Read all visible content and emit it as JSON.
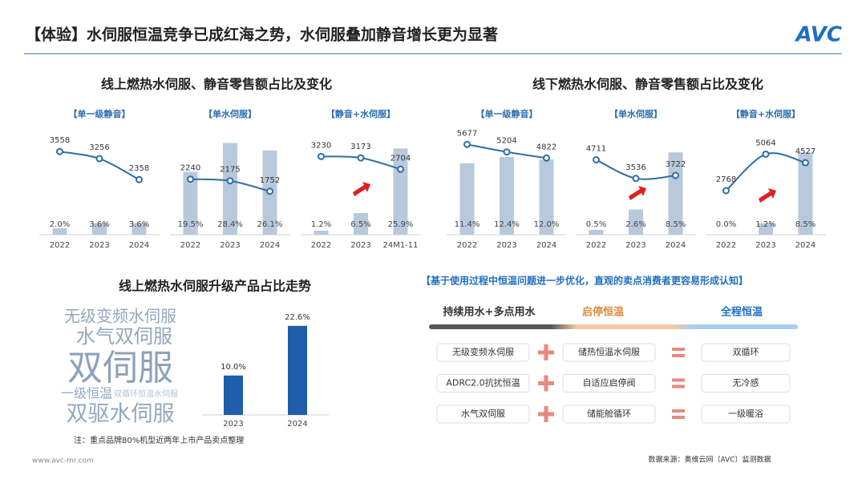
{
  "header": {
    "title": "【体验】水伺服恒温竞争已成红海之势，水伺服叠加静音增长更为显著",
    "logo": "AVC"
  },
  "section_titles": [
    "线上燃热水伺服、静音零售额占比及变化",
    "线下燃热水伺服、静音零售额占比及变化",
    "线上燃热水伺服升级产品占比走势"
  ],
  "chart_data": [
    {
      "type": "combo",
      "title": "【单一级静音】",
      "categories": [
        "2022",
        "2023",
        "2024"
      ],
      "ylim": [
        0,
        33
      ],
      "y2lim": [
        0,
        4560
      ],
      "series": [
        {
          "kind": "bar",
          "color": "#b8c9dc",
          "values": [
            2.0,
            3.6,
            3.6
          ],
          "value_labels": [
            "2.0%",
            "3.6%",
            "3.6%"
          ]
        },
        {
          "kind": "line",
          "axis": "y2",
          "color": "#2d6da6",
          "values": [
            3558,
            3256,
            2358
          ]
        }
      ]
    },
    {
      "type": "combo",
      "title": "【单水伺服】",
      "categories": [
        "2022",
        "2023",
        "2024"
      ],
      "ylim": [
        0,
        33
      ],
      "y2lim": [
        0,
        4300
      ],
      "series": [
        {
          "kind": "bar",
          "color": "#b8c9dc",
          "values": [
            19.5,
            28.4,
            26.1
          ],
          "value_labels": [
            "19.5%",
            "28.4%",
            "26.1%"
          ]
        },
        {
          "kind": "line",
          "axis": "y2",
          "color": "#2d6da6",
          "values": [
            2240,
            2175,
            1752
          ]
        }
      ]
    },
    {
      "type": "combo",
      "title": "【静音+水伺服】",
      "categories": [
        "2022",
        "2023",
        "24M1-11"
      ],
      "ylim": [
        0,
        32
      ],
      "y2lim": [
        0,
        4400
      ],
      "series": [
        {
          "kind": "bar",
          "color": "#b8c9dc",
          "values": [
            1.2,
            6.5,
            25.9
          ],
          "value_labels": [
            "1.2%",
            "6.5%",
            "25.9%"
          ]
        },
        {
          "kind": "line",
          "axis": "y2",
          "color": "#2d6da6",
          "values": [
            3230,
            3173,
            2704
          ]
        }
      ]
    },
    {
      "type": "combo",
      "title": "【单一级静音】",
      "categories": [
        "2022",
        "2023",
        "2024"
      ],
      "ylim": [
        0,
        17
      ],
      "y2lim": [
        0,
        6700
      ],
      "series": [
        {
          "kind": "bar",
          "color": "#b8c9dc",
          "values": [
            11.4,
            12.4,
            12.0
          ],
          "value_labels": [
            "11.4%",
            "12.4%",
            "12.0%"
          ]
        },
        {
          "kind": "line",
          "axis": "y2",
          "color": "#2d6da6",
          "values": [
            5677,
            5204,
            4822
          ]
        }
      ]
    },
    {
      "type": "combo",
      "title": "【单水伺服】",
      "categories": [
        "2022",
        "2023",
        "2024"
      ],
      "ylim": [
        0,
        11
      ],
      "y2lim": [
        0,
        6700
      ],
      "series": [
        {
          "kind": "bar",
          "color": "#b8c9dc",
          "values": [
            0.5,
            2.6,
            8.5
          ],
          "value_labels": [
            "0.5%",
            "2.6%",
            "8.5%"
          ]
        },
        {
          "kind": "line",
          "axis": "y2",
          "color": "#2d6da6",
          "values": [
            4711,
            3536,
            3722
          ]
        }
      ]
    },
    {
      "type": "combo",
      "title": "【静音+水伺服】",
      "categories": [
        "2022",
        "2023",
        "2024"
      ],
      "ylim": [
        0,
        11
      ],
      "y2lim": [
        0,
        6700
      ],
      "series": [
        {
          "kind": "bar",
          "color": "#b8c9dc",
          "values": [
            0.0,
            1.2,
            8.5
          ],
          "value_labels": [
            "0.0%",
            "1.2%",
            "8.5%"
          ]
        },
        {
          "kind": "line",
          "axis": "y2",
          "color": "#2d6da6",
          "values": [
            2768,
            5064,
            4527
          ]
        }
      ]
    },
    {
      "type": "bar",
      "categories": [
        "2023",
        "2024"
      ],
      "values": [
        10.0,
        22.6
      ],
      "value_labels": [
        "10.0%",
        "22.6%"
      ],
      "color": "#1f5ea8",
      "ylim": [
        0,
        25
      ]
    }
  ],
  "word_cloud": {
    "words": [
      "无级变频水伺服",
      "水气双伺服",
      "双伺服",
      "一级恒温",
      "双循环恒温水伺服",
      "双驱水伺服"
    ]
  },
  "note": "注：重点品牌80%机型近两年上市产品卖点整理",
  "comparison": {
    "heading": "【基于使用过程中恒温问题进一步优化，直观的卖点消费者更容易形成认知】",
    "stages": [
      "持续用水+多点用水",
      "启停恒温",
      "全程恒温"
    ],
    "rows": [
      [
        "无级变频水伺服",
        "储热恒温水伺服",
        "双循环"
      ],
      [
        "ADRC2.0抗扰恒温",
        "自适应启停阀",
        "无冷感"
      ],
      [
        "水气双伺服",
        "储能舱循环",
        "一级暖浴"
      ]
    ]
  },
  "footer": {
    "website": "www.avc-mr.com",
    "source": "数据来源：奥维云网（AVC）监测数据"
  }
}
